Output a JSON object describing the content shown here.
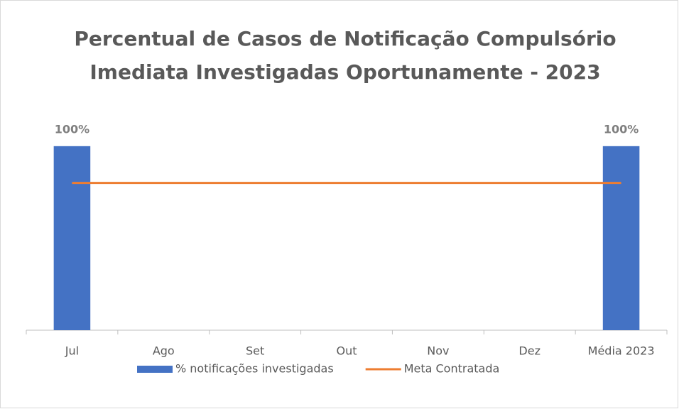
{
  "chart_data": {
    "type": "bar",
    "title": [
      "Percentual de Casos de Notificação Compulsório",
      "Imediata Investigadas Oportunamente - 2023"
    ],
    "categories": [
      "Jul",
      "Ago",
      "Set",
      "Out",
      "Nov",
      "Dez",
      "Média 2023"
    ],
    "series": [
      {
        "name": "% notificações investigadas",
        "type": "bar",
        "color": "#4472c4",
        "values": [
          100,
          null,
          null,
          null,
          null,
          null,
          100
        ],
        "value_labels": [
          "100%",
          null,
          null,
          null,
          null,
          null,
          "100%"
        ]
      },
      {
        "name": "Meta Contratada",
        "type": "line",
        "color": "#ed7d31",
        "values": [
          80,
          80,
          80,
          80,
          80,
          80,
          80
        ]
      }
    ],
    "ylim": [
      0,
      120
    ],
    "legend": "bottom"
  }
}
